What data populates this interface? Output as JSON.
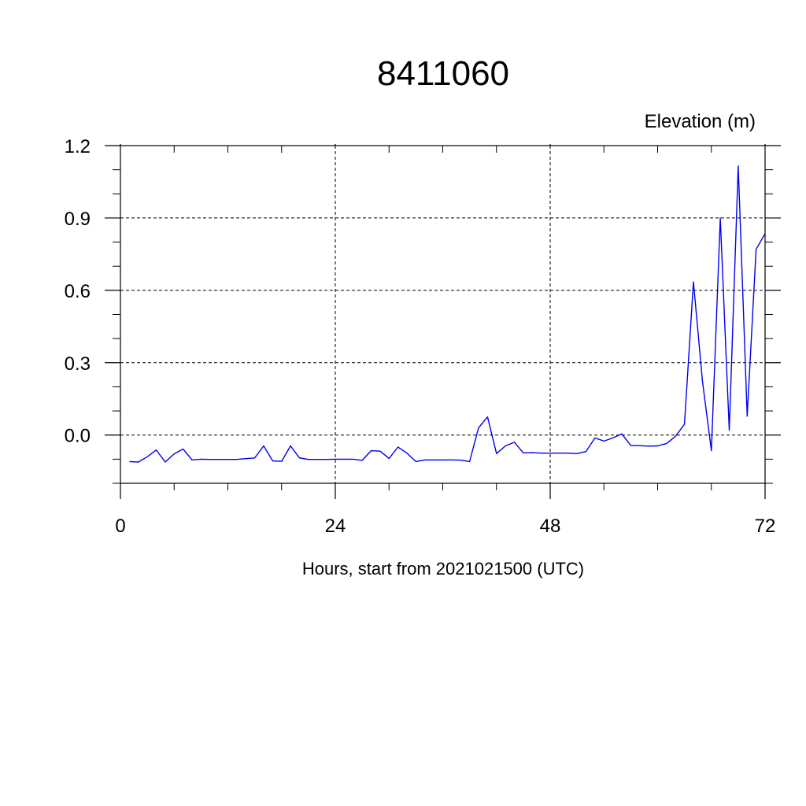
{
  "chart_data": {
    "type": "line",
    "title": "8411060",
    "ylabel": "Elevation (m)",
    "xlabel": "Hours, start from 2021021500 (UTC)",
    "xlim": [
      0,
      72
    ],
    "ylim": [
      -0.2,
      1.2
    ],
    "x_ticks": [
      0,
      24,
      48,
      72
    ],
    "y_ticks": [
      0.0,
      0.3,
      0.6,
      0.9,
      1.2
    ],
    "x_tick_labels": [
      "0",
      "24",
      "48",
      "72"
    ],
    "y_tick_labels": [
      "0.0",
      "0.3",
      "0.6",
      "0.9",
      "1.2"
    ],
    "grid": true,
    "series": [
      {
        "color": "#0000ee",
        "x": [
          1,
          2,
          3,
          4,
          5,
          6,
          7,
          8,
          9,
          10,
          11,
          12,
          13,
          14,
          15,
          16,
          17,
          18,
          19,
          20,
          21,
          22,
          23,
          24,
          25,
          26,
          27,
          28,
          29,
          30,
          31,
          32,
          33,
          34,
          35,
          36,
          37,
          38,
          39,
          40,
          41,
          42,
          43,
          44,
          45,
          46,
          47,
          48,
          49,
          50,
          51,
          52,
          53,
          54,
          55,
          56,
          57,
          58,
          59,
          60,
          61,
          62,
          63,
          64,
          65,
          66,
          67,
          68,
          69,
          70,
          71,
          72
        ],
        "y": [
          -0.11,
          -0.112,
          -0.09,
          -0.062,
          -0.112,
          -0.078,
          -0.058,
          -0.103,
          -0.1,
          -0.101,
          -0.101,
          -0.101,
          -0.101,
          -0.098,
          -0.095,
          -0.045,
          -0.107,
          -0.109,
          -0.045,
          -0.095,
          -0.101,
          -0.101,
          -0.101,
          -0.1,
          -0.1,
          -0.1,
          -0.105,
          -0.065,
          -0.067,
          -0.097,
          -0.05,
          -0.075,
          -0.11,
          -0.103,
          -0.103,
          -0.103,
          -0.103,
          -0.104,
          -0.11,
          0.03,
          0.075,
          -0.077,
          -0.045,
          -0.03,
          -0.074,
          -0.073,
          -0.075,
          -0.075,
          -0.075,
          -0.075,
          -0.077,
          -0.068,
          -0.012,
          -0.025,
          -0.012,
          0.005,
          -0.043,
          -0.044,
          -0.046,
          -0.045,
          -0.035,
          -0.005,
          0.045,
          0.635,
          0.225,
          -0.065,
          0.9,
          0.02,
          1.115,
          0.078,
          0.77,
          0.835
        ]
      }
    ]
  }
}
